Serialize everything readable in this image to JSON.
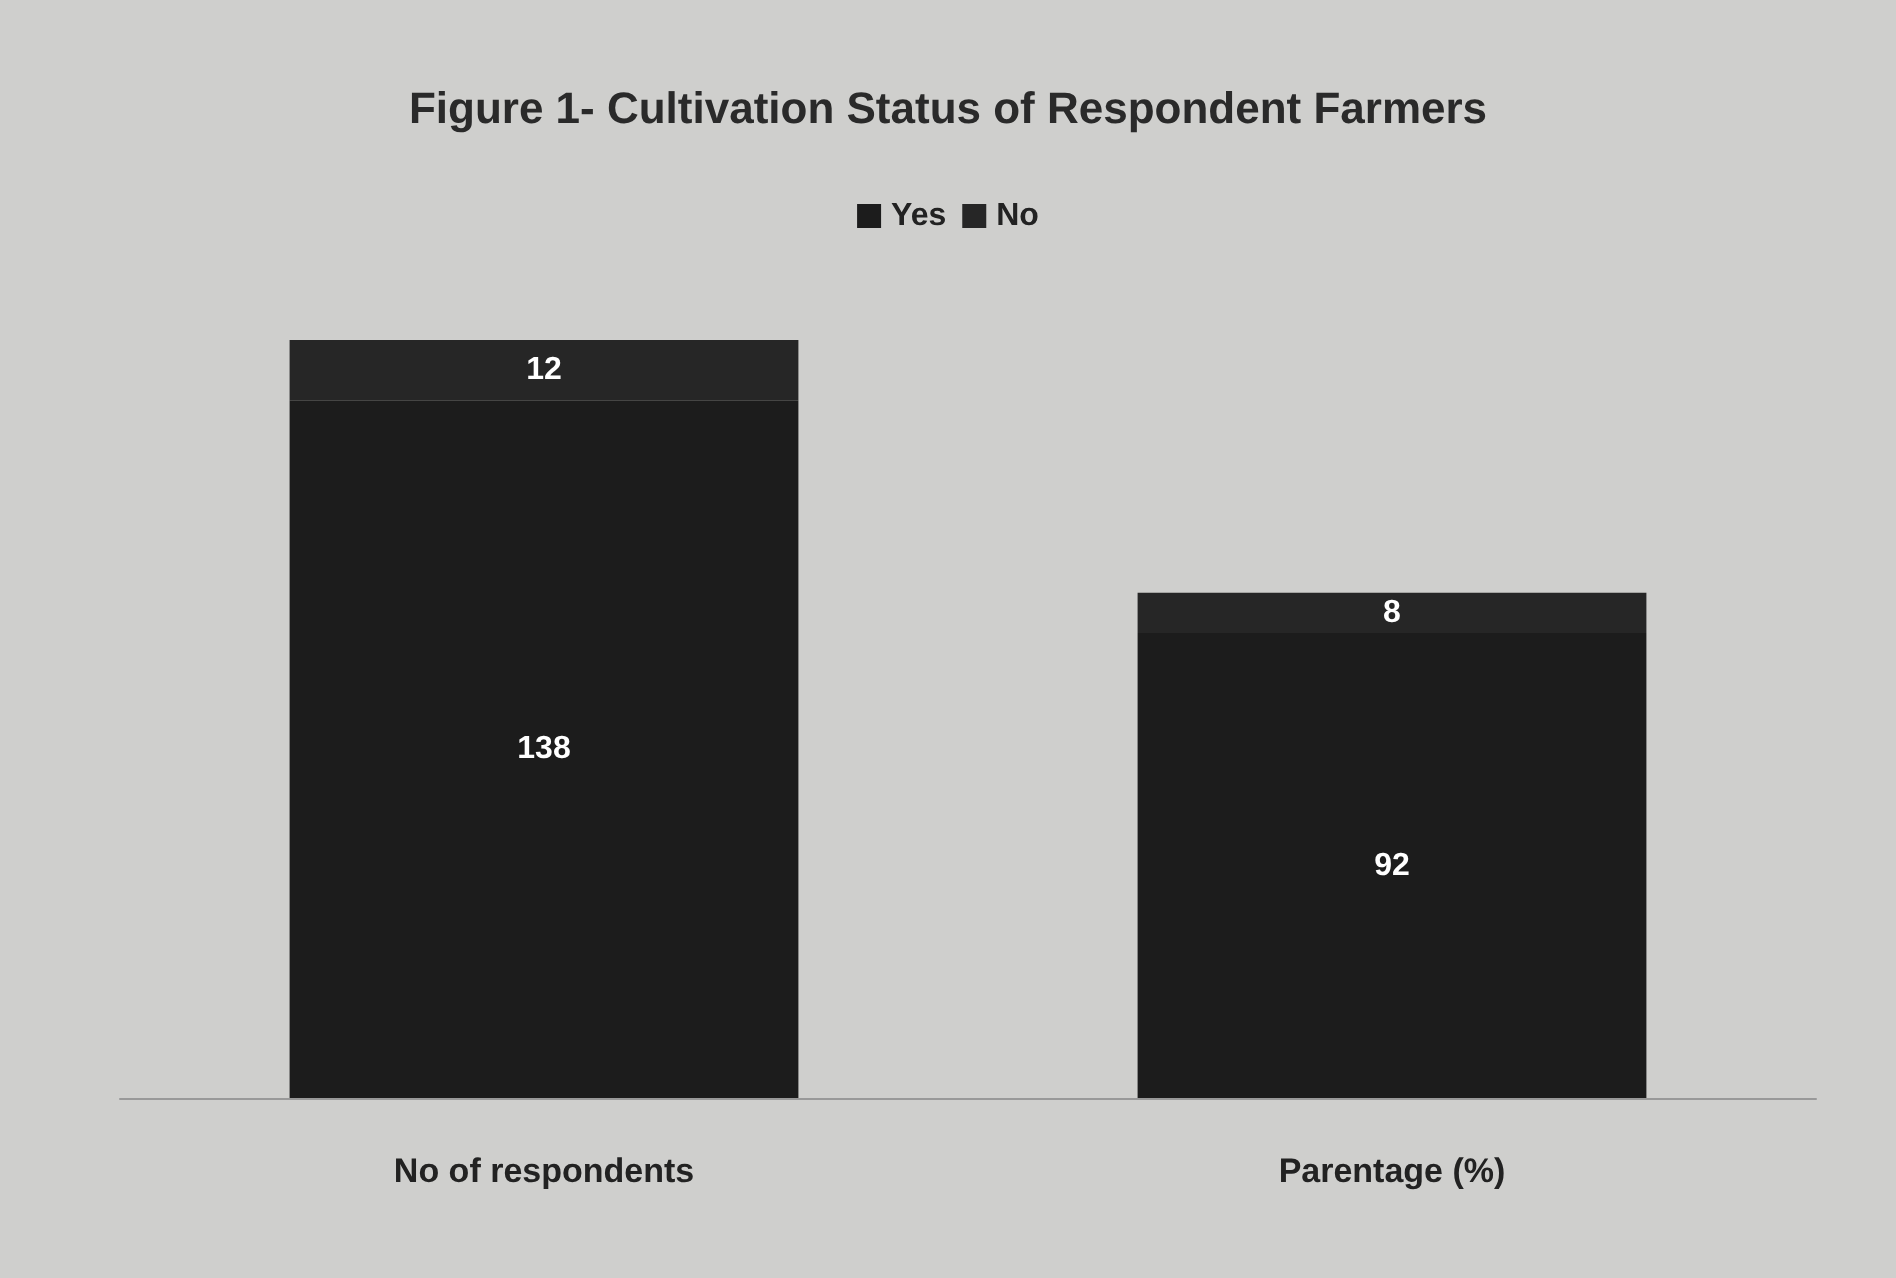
{
  "chart_data": {
    "type": "bar",
    "title": "Figure 1- Cultivation Status of Respondent Farmers",
    "categories": [
      "No of respondents",
      "Parentage (%)"
    ],
    "stacked": true,
    "data_labels": true,
    "legend": "top",
    "series": [
      {
        "name": "Yes",
        "color": "#1c1c1c",
        "values": [
          138,
          92
        ]
      },
      {
        "name": "No",
        "color": "#262626",
        "values": [
          12,
          8
        ]
      }
    ]
  }
}
